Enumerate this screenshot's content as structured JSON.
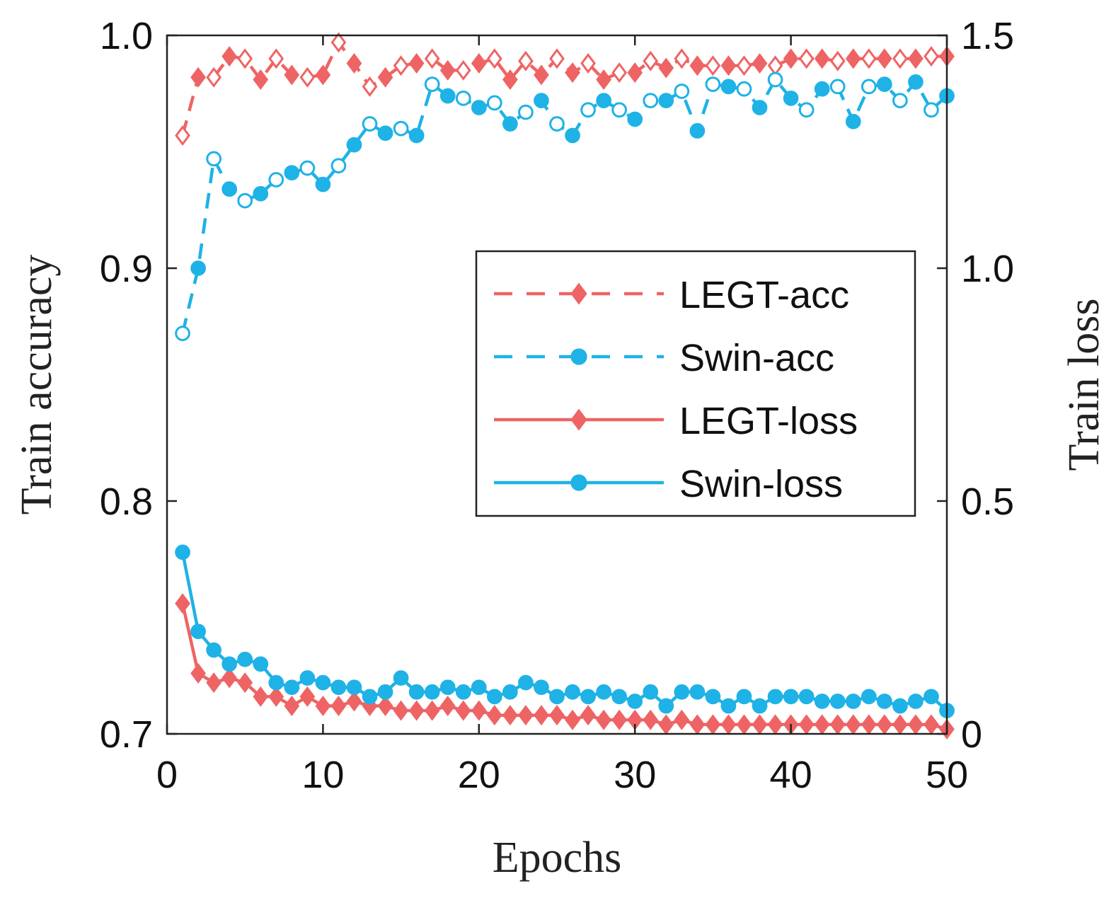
{
  "colors": {
    "legt": "#ee6464",
    "swin": "#1fb2e6",
    "axis": "#222222",
    "background": "#ffffff"
  },
  "chart_data": {
    "type": "line",
    "title": "",
    "xlabel": "Epochs",
    "ylabel_left": "Train accuracy",
    "ylabel_right": "Train loss",
    "xlim": [
      0,
      50
    ],
    "ylim_left": [
      0.7,
      1.0
    ],
    "ylim_right": [
      0,
      1.5
    ],
    "x_ticks": [
      0,
      10,
      20,
      30,
      40,
      50
    ],
    "y_left_ticks": [
      "0.7",
      "0.8",
      "0.9",
      "1.0"
    ],
    "y_right_ticks": [
      "0",
      "0.5",
      "1.0",
      "1.5"
    ],
    "grid": false,
    "legend_position": "center-right",
    "x": [
      1,
      2,
      3,
      4,
      5,
      6,
      7,
      8,
      9,
      10,
      11,
      12,
      13,
      14,
      15,
      16,
      17,
      18,
      19,
      20,
      21,
      22,
      23,
      24,
      25,
      26,
      27,
      28,
      29,
      30,
      31,
      32,
      33,
      34,
      35,
      36,
      37,
      38,
      39,
      40,
      41,
      42,
      43,
      44,
      45,
      46,
      47,
      48,
      49,
      50
    ],
    "series": [
      {
        "name": "LEGT-acc",
        "axis": "left",
        "line_style": "dashed",
        "marker": "diamond",
        "color": "#ee6464",
        "values": [
          0.957,
          0.982,
          0.982,
          0.991,
          0.99,
          0.981,
          0.99,
          0.983,
          0.982,
          0.983,
          0.997,
          0.988,
          0.978,
          0.982,
          0.987,
          0.988,
          0.99,
          0.985,
          0.985,
          0.988,
          0.99,
          0.981,
          0.989,
          0.983,
          0.99,
          0.984,
          0.988,
          0.981,
          0.984,
          0.984,
          0.989,
          0.986,
          0.99,
          0.987,
          0.987,
          0.987,
          0.987,
          0.988,
          0.987,
          0.99,
          0.99,
          0.99,
          0.989,
          0.99,
          0.99,
          0.99,
          0.99,
          0.99,
          0.991,
          0.991
        ]
      },
      {
        "name": "Swin-acc",
        "axis": "left",
        "line_style": "dashed",
        "marker": "circle",
        "color": "#1fb2e6",
        "values": [
          0.872,
          0.9,
          0.947,
          0.934,
          0.929,
          0.932,
          0.938,
          0.941,
          0.943,
          0.936,
          0.944,
          0.953,
          0.962,
          0.958,
          0.96,
          0.957,
          0.979,
          0.974,
          0.973,
          0.969,
          0.971,
          0.962,
          0.967,
          0.972,
          0.962,
          0.957,
          0.968,
          0.972,
          0.968,
          0.964,
          0.972,
          0.972,
          0.976,
          0.959,
          0.979,
          0.978,
          0.977,
          0.969,
          0.981,
          0.973,
          0.968,
          0.977,
          0.978,
          0.963,
          0.978,
          0.979,
          0.972,
          0.98,
          0.968,
          0.974
        ]
      },
      {
        "name": "LEGT-loss",
        "axis": "right",
        "line_style": "solid",
        "marker": "diamond",
        "color": "#ee6464",
        "values": [
          0.28,
          0.13,
          0.11,
          0.12,
          0.11,
          0.08,
          0.08,
          0.06,
          0.08,
          0.06,
          0.06,
          0.07,
          0.06,
          0.06,
          0.05,
          0.05,
          0.05,
          0.06,
          0.05,
          0.05,
          0.04,
          0.04,
          0.04,
          0.04,
          0.04,
          0.03,
          0.04,
          0.03,
          0.03,
          0.03,
          0.03,
          0.02,
          0.03,
          0.02,
          0.02,
          0.02,
          0.02,
          0.02,
          0.02,
          0.02,
          0.02,
          0.02,
          0.02,
          0.02,
          0.02,
          0.02,
          0.02,
          0.02,
          0.02,
          0.01
        ]
      },
      {
        "name": "Swin-loss",
        "axis": "right",
        "line_style": "solid",
        "marker": "circle",
        "color": "#1fb2e6",
        "values": [
          0.39,
          0.22,
          0.18,
          0.15,
          0.16,
          0.15,
          0.11,
          0.1,
          0.12,
          0.11,
          0.1,
          0.1,
          0.08,
          0.09,
          0.12,
          0.09,
          0.09,
          0.1,
          0.09,
          0.1,
          0.08,
          0.09,
          0.11,
          0.1,
          0.08,
          0.09,
          0.08,
          0.09,
          0.08,
          0.07,
          0.09,
          0.06,
          0.09,
          0.09,
          0.08,
          0.06,
          0.08,
          0.06,
          0.08,
          0.08,
          0.08,
          0.07,
          0.07,
          0.07,
          0.08,
          0.07,
          0.06,
          0.07,
          0.08,
          0.05
        ]
      }
    ]
  }
}
